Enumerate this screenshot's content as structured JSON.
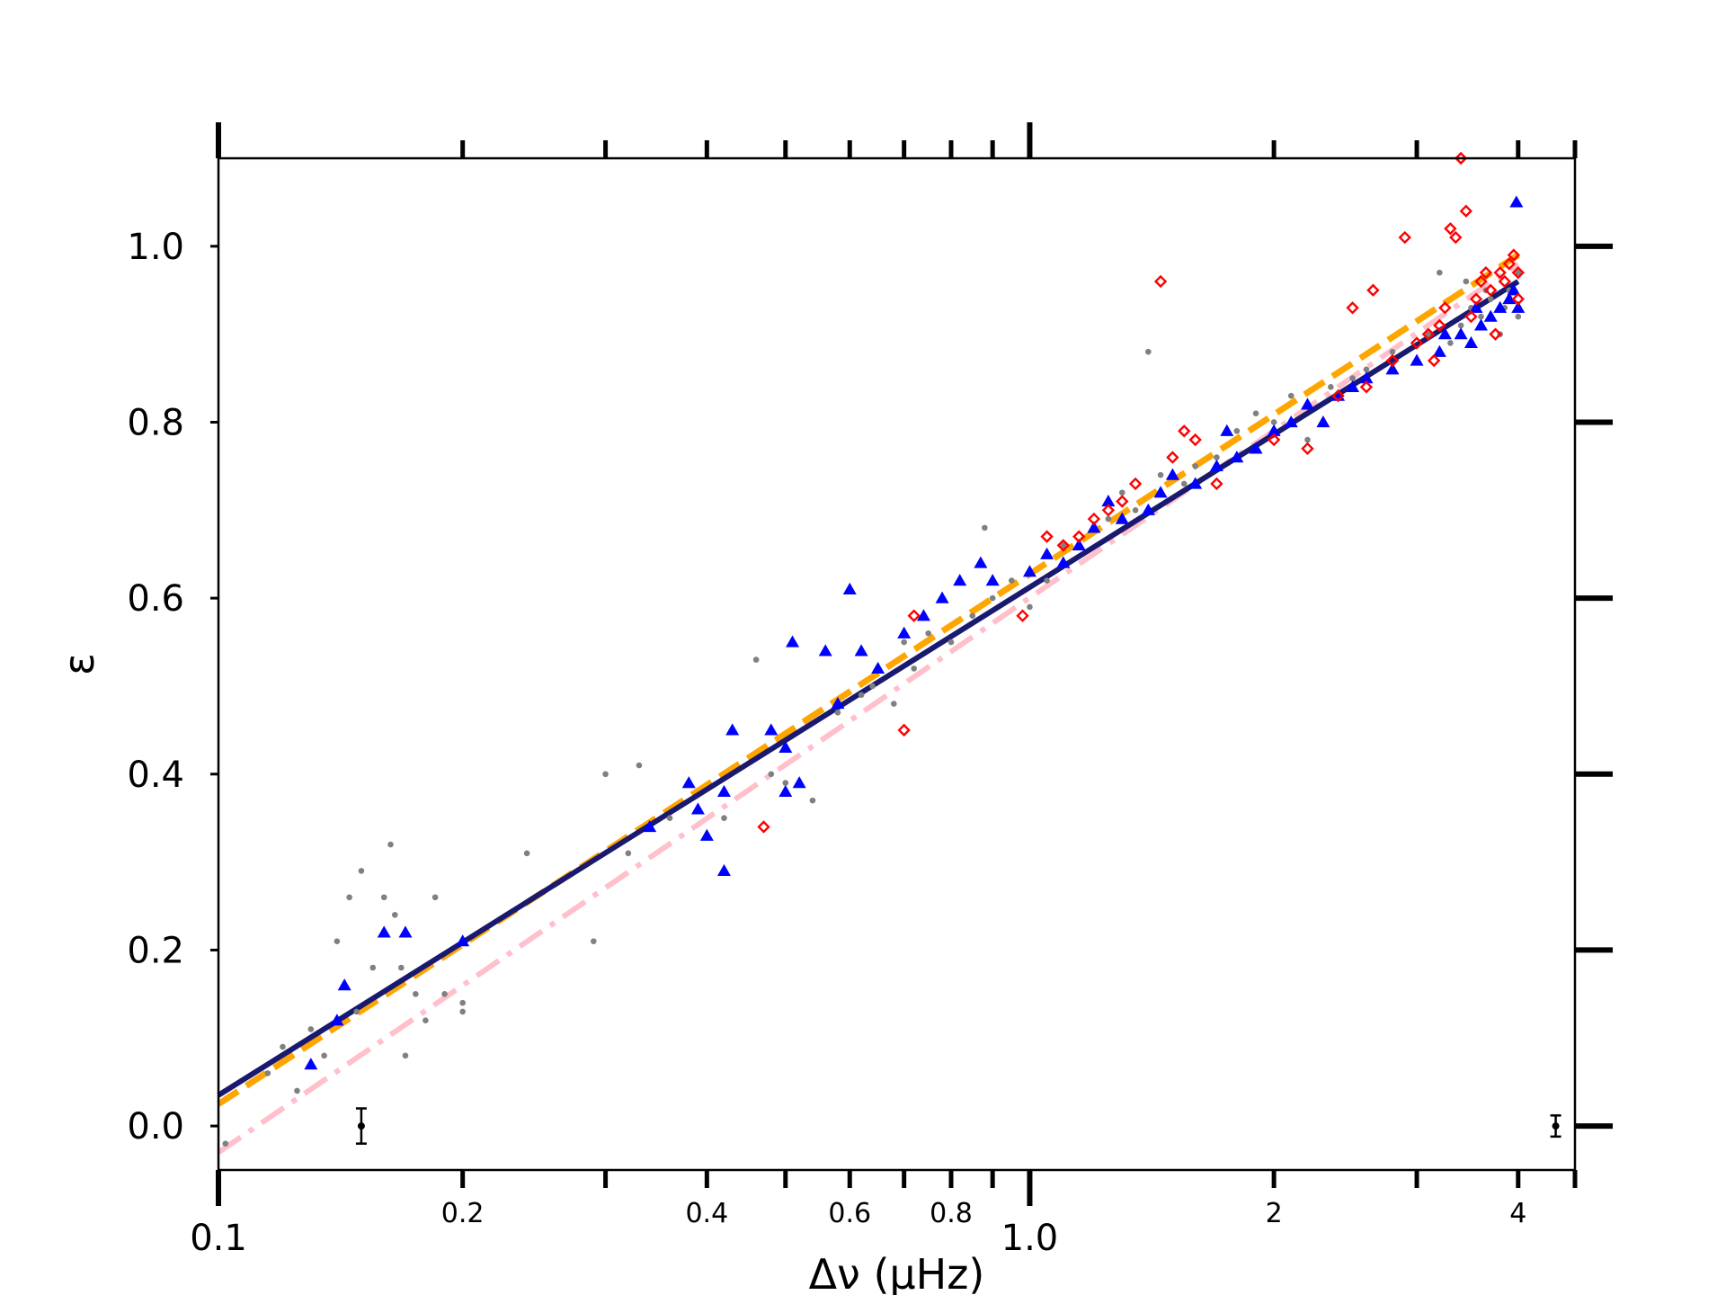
{
  "chart_data": {
    "type": "scatter",
    "title": "",
    "xlabel": "Δν (μHz)",
    "ylabel": "ε",
    "xscale": "log",
    "xlim": [
      0.1,
      4.7
    ],
    "ylim": [
      -0.05,
      1.1
    ],
    "grid": false,
    "x_major_ticks": [
      {
        "value": 0.1,
        "label": "0.1"
      },
      {
        "value": 1.0,
        "label": "1.0"
      }
    ],
    "x_minor_ticks": [
      {
        "value": 0.2,
        "label": "0.2"
      },
      {
        "value": 0.3,
        "label": ""
      },
      {
        "value": 0.4,
        "label": "0.4"
      },
      {
        "value": 0.5,
        "label": ""
      },
      {
        "value": 0.6,
        "label": "0.6"
      },
      {
        "value": 0.7,
        "label": ""
      },
      {
        "value": 0.8,
        "label": "0.8"
      },
      {
        "value": 0.9,
        "label": ""
      },
      {
        "value": 2,
        "label": "2"
      },
      {
        "value": 3,
        "label": ""
      },
      {
        "value": 4,
        "label": "4"
      }
    ],
    "y_ticks": [
      {
        "value": 0.0,
        "label": "0.0"
      },
      {
        "value": 0.2,
        "label": "0.2"
      },
      {
        "value": 0.4,
        "label": "0.4"
      },
      {
        "value": 0.6,
        "label": "0.6"
      },
      {
        "value": 0.8,
        "label": "0.8"
      },
      {
        "value": 1.0,
        "label": "1.0"
      }
    ],
    "series": [
      {
        "marker": "circle-small",
        "color": "#808080",
        "points": [
          [
            0.102,
            -0.02
          ],
          [
            0.115,
            0.06
          ],
          [
            0.12,
            0.09
          ],
          [
            0.125,
            0.04
          ],
          [
            0.13,
            0.11
          ],
          [
            0.135,
            0.08
          ],
          [
            0.14,
            0.21
          ],
          [
            0.145,
            0.26
          ],
          [
            0.148,
            0.13
          ],
          [
            0.15,
            0.29
          ],
          [
            0.155,
            0.18
          ],
          [
            0.16,
            0.26
          ],
          [
            0.163,
            0.32
          ],
          [
            0.165,
            0.24
          ],
          [
            0.168,
            0.18
          ],
          [
            0.17,
            0.08
          ],
          [
            0.175,
            0.15
          ],
          [
            0.18,
            0.12
          ],
          [
            0.185,
            0.26
          ],
          [
            0.19,
            0.15
          ],
          [
            0.2,
            0.13
          ],
          [
            0.2,
            0.14
          ],
          [
            0.24,
            0.31
          ],
          [
            0.29,
            0.21
          ],
          [
            0.3,
            0.4
          ],
          [
            0.32,
            0.31
          ],
          [
            0.33,
            0.41
          ],
          [
            0.36,
            0.35
          ],
          [
            0.38,
            0.39
          ],
          [
            0.42,
            0.35
          ],
          [
            0.46,
            0.53
          ],
          [
            0.48,
            0.4
          ],
          [
            0.5,
            0.39
          ],
          [
            0.54,
            0.37
          ],
          [
            0.58,
            0.47
          ],
          [
            0.62,
            0.49
          ],
          [
            0.64,
            0.5
          ],
          [
            0.68,
            0.48
          ],
          [
            0.7,
            0.55
          ],
          [
            0.72,
            0.52
          ],
          [
            0.75,
            0.56
          ],
          [
            0.8,
            0.55
          ],
          [
            0.85,
            0.58
          ],
          [
            0.88,
            0.68
          ],
          [
            0.9,
            0.6
          ],
          [
            0.95,
            0.62
          ],
          [
            1.0,
            0.59
          ],
          [
            1.05,
            0.62
          ],
          [
            1.1,
            0.66
          ],
          [
            1.2,
            0.68
          ],
          [
            1.25,
            0.69
          ],
          [
            1.3,
            0.72
          ],
          [
            1.35,
            0.7
          ],
          [
            1.4,
            0.88
          ],
          [
            1.45,
            0.74
          ],
          [
            1.55,
            0.73
          ],
          [
            1.6,
            0.75
          ],
          [
            1.7,
            0.76
          ],
          [
            1.8,
            0.79
          ],
          [
            1.9,
            0.81
          ],
          [
            2.0,
            0.8
          ],
          [
            2.1,
            0.83
          ],
          [
            2.2,
            0.78
          ],
          [
            2.35,
            0.84
          ],
          [
            2.5,
            0.85
          ],
          [
            2.6,
            0.86
          ],
          [
            2.8,
            0.88
          ],
          [
            3.0,
            0.87
          ],
          [
            3.1,
            0.9
          ],
          [
            3.2,
            0.97
          ],
          [
            3.3,
            0.89
          ],
          [
            3.4,
            0.91
          ],
          [
            3.5,
            0.93
          ],
          [
            3.6,
            0.92
          ],
          [
            3.7,
            0.94
          ],
          [
            3.8,
            0.9
          ],
          [
            3.9,
            0.95
          ],
          [
            4.0,
            0.97
          ],
          [
            4.0,
            0.92
          ],
          [
            3.85,
            0.93
          ],
          [
            3.65,
            0.95
          ],
          [
            3.45,
            0.96
          ]
        ]
      },
      {
        "marker": "triangle",
        "color": "#0000ff",
        "points": [
          [
            0.13,
            0.07
          ],
          [
            0.14,
            0.12
          ],
          [
            0.143,
            0.16
          ],
          [
            0.16,
            0.22
          ],
          [
            0.17,
            0.22
          ],
          [
            0.2,
            0.21
          ],
          [
            0.34,
            0.34
          ],
          [
            0.38,
            0.39
          ],
          [
            0.39,
            0.36
          ],
          [
            0.4,
            0.33
          ],
          [
            0.42,
            0.38
          ],
          [
            0.42,
            0.29
          ],
          [
            0.43,
            0.45
          ],
          [
            0.48,
            0.45
          ],
          [
            0.5,
            0.38
          ],
          [
            0.5,
            0.43
          ],
          [
            0.51,
            0.55
          ],
          [
            0.52,
            0.39
          ],
          [
            0.56,
            0.54
          ],
          [
            0.58,
            0.48
          ],
          [
            0.6,
            0.61
          ],
          [
            0.62,
            0.54
          ],
          [
            0.65,
            0.52
          ],
          [
            0.7,
            0.56
          ],
          [
            0.74,
            0.58
          ],
          [
            0.78,
            0.6
          ],
          [
            0.82,
            0.62
          ],
          [
            0.87,
            0.64
          ],
          [
            0.9,
            0.62
          ],
          [
            1.0,
            0.63
          ],
          [
            1.05,
            0.65
          ],
          [
            1.1,
            0.64
          ],
          [
            1.15,
            0.66
          ],
          [
            1.2,
            0.68
          ],
          [
            1.25,
            0.71
          ],
          [
            1.3,
            0.69
          ],
          [
            1.4,
            0.7
          ],
          [
            1.45,
            0.72
          ],
          [
            1.5,
            0.74
          ],
          [
            1.6,
            0.73
          ],
          [
            1.7,
            0.75
          ],
          [
            1.75,
            0.79
          ],
          [
            1.8,
            0.76
          ],
          [
            1.9,
            0.77
          ],
          [
            2.0,
            0.79
          ],
          [
            2.1,
            0.8
          ],
          [
            2.2,
            0.82
          ],
          [
            2.3,
            0.8
          ],
          [
            2.4,
            0.83
          ],
          [
            2.5,
            0.84
          ],
          [
            2.6,
            0.85
          ],
          [
            2.8,
            0.86
          ],
          [
            3.0,
            0.87
          ],
          [
            3.2,
            0.88
          ],
          [
            3.4,
            0.9
          ],
          [
            3.5,
            0.89
          ],
          [
            3.6,
            0.91
          ],
          [
            3.7,
            0.92
          ],
          [
            3.8,
            0.93
          ],
          [
            3.9,
            0.94
          ],
          [
            3.95,
            0.95
          ],
          [
            4.0,
            0.93
          ],
          [
            3.98,
            1.05
          ],
          [
            3.55,
            0.93
          ],
          [
            3.25,
            0.9
          ]
        ]
      },
      {
        "marker": "diamond-open",
        "color": "#ff0000",
        "points": [
          [
            0.47,
            0.34
          ],
          [
            0.7,
            0.45
          ],
          [
            0.72,
            0.58
          ],
          [
            0.98,
            0.58
          ],
          [
            1.05,
            0.67
          ],
          [
            1.1,
            0.66
          ],
          [
            1.15,
            0.67
          ],
          [
            1.2,
            0.69
          ],
          [
            1.25,
            0.7
          ],
          [
            1.3,
            0.71
          ],
          [
            1.35,
            0.73
          ],
          [
            1.45,
            0.96
          ],
          [
            1.5,
            0.76
          ],
          [
            1.55,
            0.79
          ],
          [
            1.6,
            0.78
          ],
          [
            1.7,
            0.73
          ],
          [
            2.0,
            0.78
          ],
          [
            2.2,
            0.77
          ],
          [
            2.4,
            0.83
          ],
          [
            2.5,
            0.93
          ],
          [
            2.6,
            0.84
          ],
          [
            2.65,
            0.95
          ],
          [
            2.8,
            0.87
          ],
          [
            2.9,
            1.01
          ],
          [
            3.0,
            0.89
          ],
          [
            3.1,
            0.9
          ],
          [
            3.2,
            0.91
          ],
          [
            3.3,
            1.02
          ],
          [
            3.35,
            1.01
          ],
          [
            3.4,
            1.1
          ],
          [
            3.45,
            1.04
          ],
          [
            3.5,
            0.92
          ],
          [
            3.6,
            0.96
          ],
          [
            3.7,
            0.95
          ],
          [
            3.75,
            0.9
          ],
          [
            3.8,
            0.97
          ],
          [
            3.85,
            0.96
          ],
          [
            3.9,
            0.98
          ],
          [
            3.95,
            0.99
          ],
          [
            4.0,
            0.97
          ],
          [
            4.0,
            0.94
          ],
          [
            3.65,
            0.97
          ],
          [
            3.55,
            0.94
          ],
          [
            3.25,
            0.93
          ],
          [
            3.15,
            0.87
          ]
        ]
      }
    ],
    "fit_lines": [
      {
        "style": "dashdot",
        "color": "#ffc0cb",
        "width": 6,
        "points": [
          [
            0.1,
            -0.03
          ],
          [
            4.0,
            0.98
          ]
        ]
      },
      {
        "style": "dashed",
        "color": "#ffa500",
        "width": 7,
        "points": [
          [
            0.1,
            0.025
          ],
          [
            4.0,
            0.99
          ]
        ]
      },
      {
        "style": "solid",
        "color": "#191970",
        "width": 6,
        "points": [
          [
            0.1,
            0.035
          ],
          [
            4.0,
            0.96
          ]
        ]
      }
    ],
    "error_bars": [
      {
        "x": 0.15,
        "y": 0.0,
        "err": 0.02
      },
      {
        "x": 4.45,
        "y": 0.0,
        "err": 0.012
      }
    ]
  }
}
